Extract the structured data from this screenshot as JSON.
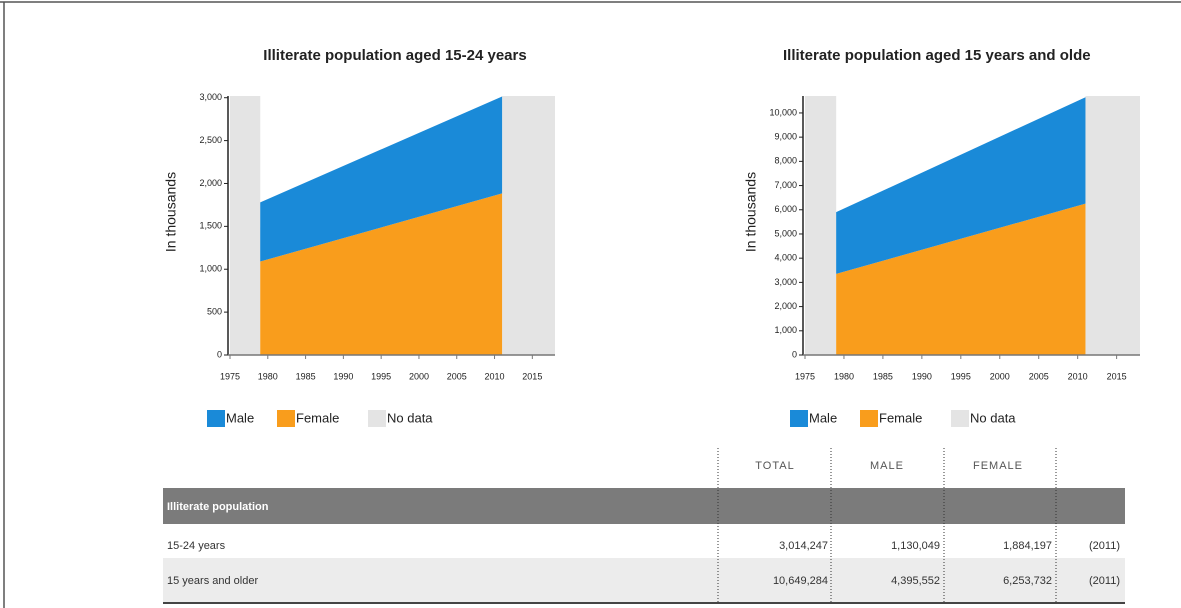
{
  "chart_data": [
    {
      "type": "area",
      "title": "Illiterate population aged 15-24 years",
      "y_label": "In thousands",
      "x": [
        1979,
        2011
      ],
      "series": [
        {
          "name": "Male",
          "color": "#1a8ad8",
          "values": [
            690,
            1130.049
          ]
        },
        {
          "name": "Female",
          "color": "#f99d1c",
          "values": [
            1090,
            1884.197
          ]
        }
      ],
      "stack_order": [
        "Female",
        "Male"
      ],
      "no_data": {
        "name": "No data",
        "color": "#e4e4e4",
        "ranges": [
          [
            1975,
            1979
          ],
          [
            2011,
            2018
          ]
        ]
      },
      "xlim": [
        1975,
        2018
      ],
      "xticks": [
        1975,
        1980,
        1985,
        1990,
        1995,
        2000,
        2005,
        2010,
        2015
      ],
      "ylim": [
        0,
        3020
      ],
      "yticks": [
        0,
        500,
        {
          "value": 1000,
          "label": "1,000"
        },
        {
          "value": 1500,
          "label": "1,500"
        },
        {
          "value": 2000,
          "label": "2,000"
        },
        {
          "value": 2500,
          "label": "2,500"
        },
        {
          "value": 3000,
          "label": "3,000"
        }
      ]
    },
    {
      "type": "area",
      "title": "Illiterate population aged 15 years and olde",
      "y_label": "In thousands",
      "x": [
        1979,
        2011
      ],
      "series": [
        {
          "name": "Male",
          "color": "#1a8ad8",
          "values": [
            2550,
            4395.552
          ]
        },
        {
          "name": "Female",
          "color": "#f99d1c",
          "values": [
            3350,
            6253.732
          ]
        }
      ],
      "stack_order": [
        "Female",
        "Male"
      ],
      "no_data": {
        "name": "No data",
        "color": "#e4e4e4",
        "ranges": [
          [
            1975,
            1979
          ],
          [
            2011,
            2018
          ]
        ]
      },
      "xlim": [
        1975,
        2018
      ],
      "xticks": [
        1975,
        1980,
        1985,
        1990,
        1995,
        2000,
        2005,
        2010,
        2015
      ],
      "ylim": [
        0,
        10700
      ],
      "yticks": [
        0,
        {
          "value": 1000,
          "label": "1,000"
        },
        {
          "value": 2000,
          "label": "2,000"
        },
        {
          "value": 3000,
          "label": "3,000"
        },
        {
          "value": 4000,
          "label": "4,000"
        },
        {
          "value": 5000,
          "label": "5,000"
        },
        {
          "value": 6000,
          "label": "6,000"
        },
        {
          "value": 7000,
          "label": "7,000"
        },
        {
          "value": 8000,
          "label": "8,000"
        },
        {
          "value": 9000,
          "label": "9,000"
        },
        {
          "value": 10000,
          "label": "10,000"
        }
      ]
    }
  ],
  "table": {
    "header": [
      "TOTAL",
      "MALE",
      "FEMALE"
    ],
    "section": "Illiterate population",
    "rows": [
      [
        "15-24 years",
        "3,014,247",
        "1,130,049",
        "1,884,197",
        "(2011)"
      ],
      [
        "15 years and older",
        "10,649,284",
        "4,395,552",
        "6,253,732",
        "(2011)"
      ]
    ]
  }
}
